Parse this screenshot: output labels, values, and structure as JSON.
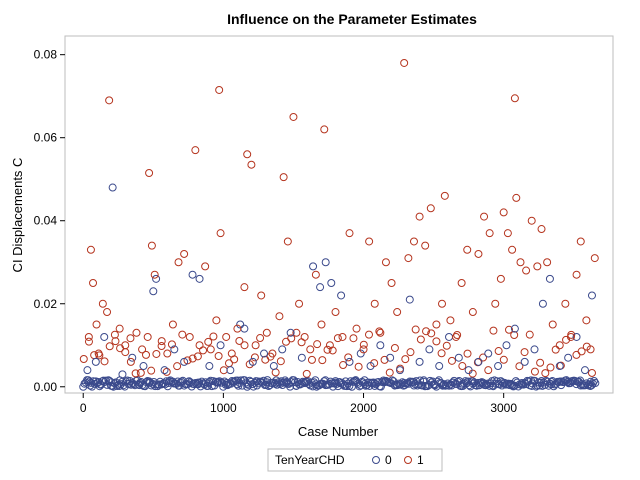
{
  "chart_data": {
    "type": "scatter",
    "title": "Influence on the Parameter Estimates",
    "xlabel": "Case Number",
    "ylabel": "CI Displacements C",
    "xlim": [
      -130,
      3780
    ],
    "ylim": [
      -0.0015,
      0.0845
    ],
    "xticks": [
      0,
      1000,
      2000,
      3000
    ],
    "yticks": [
      0.0,
      0.02,
      0.04,
      0.06,
      0.08
    ],
    "ytick_labels": [
      "0.00",
      "0.02",
      "0.04",
      "0.06",
      "0.08"
    ],
    "grid": false,
    "legend": {
      "title": "TenYearCHD",
      "placement": "bottom-center",
      "entries": [
        "0",
        "1"
      ]
    },
    "n_cases": 3658,
    "series": [
      {
        "name": "0",
        "color": "#3b4a8c",
        "points": [
          [
            50,
            0.0003
          ],
          [
            120,
            0.0006
          ],
          [
            200,
            0.0011
          ],
          [
            260,
            0.0002
          ],
          [
            330,
            0.0008
          ],
          [
            400,
            0.0004
          ],
          [
            470,
            0.0013
          ],
          [
            540,
            0.0005
          ],
          [
            610,
            0.0009
          ],
          [
            680,
            0.0003
          ],
          [
            750,
            0.0012
          ],
          [
            820,
            0.0006
          ],
          [
            890,
            0.0002
          ],
          [
            960,
            0.001
          ],
          [
            1030,
            0.0004
          ],
          [
            1100,
            0.0015
          ],
          [
            1170,
            0.0007
          ],
          [
            1240,
            0.0003
          ],
          [
            1310,
            0.0011
          ],
          [
            1380,
            0.0005
          ],
          [
            1450,
            0.0009
          ],
          [
            1520,
            0.0002
          ],
          [
            1590,
            0.0013
          ],
          [
            1660,
            0.0006
          ],
          [
            1730,
            0.0004
          ],
          [
            1800,
            0.001
          ],
          [
            1870,
            0.0003
          ],
          [
            1940,
            0.0014
          ],
          [
            2010,
            0.0007
          ],
          [
            2080,
            0.0002
          ],
          [
            2150,
            0.0011
          ],
          [
            2220,
            0.0005
          ],
          [
            2290,
            0.0009
          ],
          [
            2360,
            0.0003
          ],
          [
            2430,
            0.0012
          ],
          [
            2500,
            0.0006
          ],
          [
            2570,
            0.0004
          ],
          [
            2640,
            0.001
          ],
          [
            2710,
            0.0002
          ],
          [
            2780,
            0.0013
          ],
          [
            2850,
            0.0007
          ],
          [
            2920,
            0.0003
          ],
          [
            2990,
            0.0011
          ],
          [
            3060,
            0.0005
          ],
          [
            3130,
            0.0009
          ],
          [
            3200,
            0.0002
          ],
          [
            3270,
            0.0014
          ],
          [
            3340,
            0.0006
          ],
          [
            3410,
            0.0004
          ],
          [
            3480,
            0.001
          ],
          [
            3550,
            0.0003
          ],
          [
            3620,
            0.0012
          ],
          [
            30,
            0.004
          ],
          [
            90,
            0.006
          ],
          [
            150,
            0.012
          ],
          [
            210,
            0.048
          ],
          [
            280,
            0.003
          ],
          [
            350,
            0.007
          ],
          [
            430,
            0.005
          ],
          [
            500,
            0.023
          ],
          [
            520,
            0.026
          ],
          [
            580,
            0.004
          ],
          [
            650,
            0.009
          ],
          [
            720,
            0.006
          ],
          [
            780,
            0.027
          ],
          [
            830,
            0.026
          ],
          [
            900,
            0.005
          ],
          [
            980,
            0.01
          ],
          [
            1050,
            0.004
          ],
          [
            1120,
            0.015
          ],
          [
            1150,
            0.014
          ],
          [
            1210,
            0.006
          ],
          [
            1290,
            0.008
          ],
          [
            1360,
            0.005
          ],
          [
            1420,
            0.009
          ],
          [
            1480,
            0.013
          ],
          [
            1560,
            0.007
          ],
          [
            1640,
            0.029
          ],
          [
            1690,
            0.024
          ],
          [
            1730,
            0.03
          ],
          [
            1770,
            0.025
          ],
          [
            1840,
            0.022
          ],
          [
            1900,
            0.006
          ],
          [
            1980,
            0.008
          ],
          [
            2050,
            0.005
          ],
          [
            2120,
            0.01
          ],
          [
            2190,
            0.007
          ],
          [
            2260,
            0.004
          ],
          [
            2330,
            0.021
          ],
          [
            2400,
            0.006
          ],
          [
            2470,
            0.009
          ],
          [
            2540,
            0.005
          ],
          [
            2610,
            0.012
          ],
          [
            2680,
            0.007
          ],
          [
            2750,
            0.004
          ],
          [
            2820,
            0.006
          ],
          [
            2890,
            0.008
          ],
          [
            2960,
            0.005
          ],
          [
            3020,
            0.01
          ],
          [
            3080,
            0.014
          ],
          [
            3150,
            0.006
          ],
          [
            3220,
            0.009
          ],
          [
            3280,
            0.02
          ],
          [
            3330,
            0.026
          ],
          [
            3400,
            0.005
          ],
          [
            3460,
            0.007
          ],
          [
            3520,
            0.012
          ],
          [
            3580,
            0.004
          ],
          [
            3630,
            0.022
          ]
        ]
      },
      {
        "name": "1",
        "color": "#b5341e",
        "points": [
          [
            40,
            0.012
          ],
          [
            55,
            0.033
          ],
          [
            70,
            0.025
          ],
          [
            95,
            0.015
          ],
          [
            110,
            0.008
          ],
          [
            140,
            0.02
          ],
          [
            170,
            0.018
          ],
          [
            185,
            0.069
          ],
          [
            230,
            0.011
          ],
          [
            260,
            0.014
          ],
          [
            300,
            0.01
          ],
          [
            340,
            0.006
          ],
          [
            380,
            0.013
          ],
          [
            420,
            0.009
          ],
          [
            460,
            0.012
          ],
          [
            470,
            0.0515
          ],
          [
            490,
            0.034
          ],
          [
            510,
            0.027
          ],
          [
            560,
            0.011
          ],
          [
            600,
            0.008
          ],
          [
            640,
            0.015
          ],
          [
            680,
            0.03
          ],
          [
            720,
            0.032
          ],
          [
            760,
            0.012
          ],
          [
            800,
            0.057
          ],
          [
            830,
            0.01
          ],
          [
            870,
            0.029
          ],
          [
            910,
            0.009
          ],
          [
            950,
            0.016
          ],
          [
            970,
            0.0715
          ],
          [
            980,
            0.037
          ],
          [
            1020,
            0.012
          ],
          [
            1060,
            0.008
          ],
          [
            1100,
            0.014
          ],
          [
            1150,
            0.024
          ],
          [
            1170,
            0.056
          ],
          [
            1200,
            0.0535
          ],
          [
            1230,
            0.01
          ],
          [
            1270,
            0.022
          ],
          [
            1310,
            0.013
          ],
          [
            1350,
            0.008
          ],
          [
            1400,
            0.017
          ],
          [
            1430,
            0.0505
          ],
          [
            1460,
            0.035
          ],
          [
            1500,
            0.065
          ],
          [
            1540,
            0.02
          ],
          [
            1580,
            0.012
          ],
          [
            1620,
            0.009
          ],
          [
            1660,
            0.027
          ],
          [
            1700,
            0.015
          ],
          [
            1720,
            0.062
          ],
          [
            1760,
            0.01
          ],
          [
            1800,
            0.018
          ],
          [
            1850,
            0.012
          ],
          [
            1900,
            0.037
          ],
          [
            1950,
            0.014
          ],
          [
            2000,
            0.009
          ],
          [
            2040,
            0.035
          ],
          [
            2080,
            0.02
          ],
          [
            2120,
            0.013
          ],
          [
            2160,
            0.03
          ],
          [
            2200,
            0.025
          ],
          [
            2240,
            0.018
          ],
          [
            2290,
            0.078
          ],
          [
            2320,
            0.031
          ],
          [
            2360,
            0.035
          ],
          [
            2400,
            0.041
          ],
          [
            2440,
            0.034
          ],
          [
            2480,
            0.043
          ],
          [
            2520,
            0.015
          ],
          [
            2560,
            0.02
          ],
          [
            2580,
            0.046
          ],
          [
            2620,
            0.016
          ],
          [
            2660,
            0.012
          ],
          [
            2700,
            0.025
          ],
          [
            2740,
            0.033
          ],
          [
            2780,
            0.018
          ],
          [
            2820,
            0.032
          ],
          [
            2860,
            0.041
          ],
          [
            2900,
            0.037
          ],
          [
            2940,
            0.02
          ],
          [
            2980,
            0.026
          ],
          [
            3000,
            0.042
          ],
          [
            3030,
            0.037
          ],
          [
            3060,
            0.033
          ],
          [
            3080,
            0.0695
          ],
          [
            3090,
            0.0455
          ],
          [
            3120,
            0.03
          ],
          [
            3160,
            0.028
          ],
          [
            3200,
            0.04
          ],
          [
            3240,
            0.029
          ],
          [
            3270,
            0.038
          ],
          [
            3310,
            0.03
          ],
          [
            3350,
            0.015
          ],
          [
            3400,
            0.01
          ],
          [
            3440,
            0.02
          ],
          [
            3480,
            0.012
          ],
          [
            3520,
            0.027
          ],
          [
            3550,
            0.035
          ],
          [
            3590,
            0.016
          ],
          [
            3620,
            0.009
          ],
          [
            3650,
            0.031
          ]
        ]
      }
    ]
  }
}
